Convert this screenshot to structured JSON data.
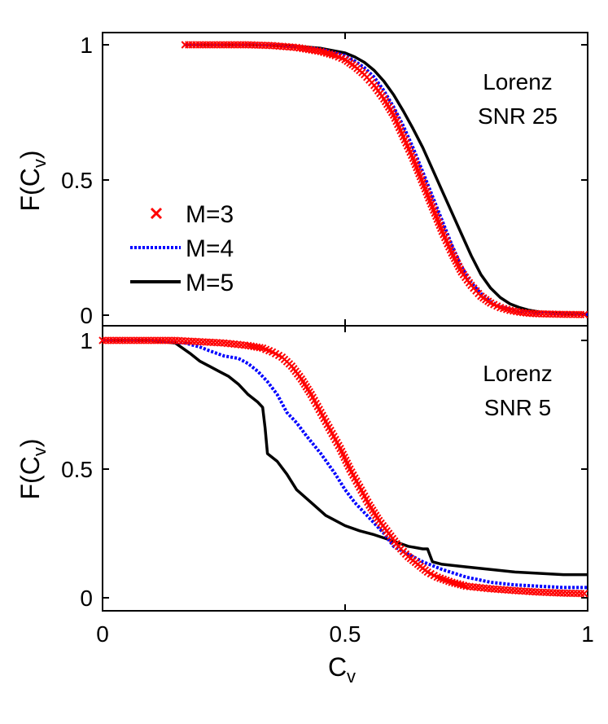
{
  "chart_data": [
    {
      "type": "line",
      "panel": "top",
      "annotation": [
        "Lorenz",
        "SNR 25"
      ],
      "ylabel": "F(C",
      "ylabel_sub": "v",
      "ylabel_close": ")",
      "xlim": [
        0,
        1
      ],
      "ylim": [
        0,
        1
      ],
      "yticks": [
        0,
        0.5,
        1
      ],
      "ytick_labels": [
        "0",
        "0.5",
        "1"
      ],
      "legend": {
        "placement": "middle-left",
        "entries": [
          {
            "label": "M=3",
            "series": 0
          },
          {
            "label": "M=4",
            "series": 1
          },
          {
            "label": "M=5",
            "series": 2
          }
        ]
      },
      "series": [
        {
          "name": "M=3",
          "color": "#ff0000",
          "style": "x-markers",
          "x": [
            0.17,
            0.2,
            0.25,
            0.3,
            0.35,
            0.4,
            0.45,
            0.48,
            0.5,
            0.52,
            0.54,
            0.56,
            0.58,
            0.6,
            0.62,
            0.64,
            0.66,
            0.68,
            0.7,
            0.72,
            0.74,
            0.76,
            0.78,
            0.8,
            0.82,
            0.84,
            0.86,
            0.88,
            0.9,
            0.95,
            1.0
          ],
          "y": [
            1.0,
            1.0,
            1.0,
            1.0,
            0.997,
            0.99,
            0.975,
            0.96,
            0.945,
            0.92,
            0.89,
            0.85,
            0.8,
            0.74,
            0.66,
            0.58,
            0.49,
            0.4,
            0.31,
            0.23,
            0.16,
            0.11,
            0.07,
            0.045,
            0.028,
            0.018,
            0.011,
            0.007,
            0.005,
            0.003,
            0.002
          ]
        },
        {
          "name": "M=4",
          "color": "#0000ff",
          "style": "dotted",
          "x": [
            0.17,
            0.25,
            0.3,
            0.35,
            0.4,
            0.45,
            0.5,
            0.52,
            0.54,
            0.56,
            0.58,
            0.6,
            0.62,
            0.64,
            0.66,
            0.68,
            0.7,
            0.72,
            0.74,
            0.76,
            0.78,
            0.8,
            0.82,
            0.84,
            0.86,
            0.88,
            0.9,
            0.95,
            1.0
          ],
          "y": [
            1.0,
            1.0,
            1.0,
            0.998,
            0.993,
            0.983,
            0.96,
            0.94,
            0.915,
            0.88,
            0.83,
            0.77,
            0.7,
            0.62,
            0.53,
            0.44,
            0.35,
            0.26,
            0.18,
            0.12,
            0.08,
            0.05,
            0.032,
            0.022,
            0.015,
            0.01,
            0.007,
            0.004,
            0.003
          ]
        },
        {
          "name": "M=5",
          "color": "#000000",
          "style": "solid",
          "x": [
            0.17,
            0.25,
            0.3,
            0.35,
            0.4,
            0.45,
            0.5,
            0.52,
            0.54,
            0.56,
            0.58,
            0.6,
            0.62,
            0.64,
            0.66,
            0.68,
            0.7,
            0.72,
            0.74,
            0.76,
            0.78,
            0.8,
            0.82,
            0.84,
            0.86,
            0.88,
            0.9,
            0.95,
            1.0
          ],
          "y": [
            1.0,
            1.0,
            1.0,
            0.998,
            0.995,
            0.987,
            0.97,
            0.955,
            0.935,
            0.905,
            0.865,
            0.815,
            0.755,
            0.69,
            0.62,
            0.54,
            0.46,
            0.38,
            0.3,
            0.22,
            0.15,
            0.1,
            0.065,
            0.042,
            0.028,
            0.018,
            0.012,
            0.006,
            0.004
          ]
        }
      ]
    },
    {
      "type": "line",
      "panel": "bottom",
      "annotation": [
        "Lorenz",
        "SNR 5"
      ],
      "xlabel": "C",
      "xlabel_sub": "v",
      "ylabel": "F(C",
      "ylabel_sub": "v",
      "ylabel_close": ")",
      "xlim": [
        0,
        1
      ],
      "ylim": [
        0,
        1
      ],
      "xticks": [
        0,
        0.5,
        1
      ],
      "xtick_labels": [
        "0",
        "0.5",
        "1"
      ],
      "yticks": [
        0,
        0.5,
        1
      ],
      "ytick_labels": [
        "0",
        "0.5",
        "1"
      ],
      "series": [
        {
          "name": "M=3",
          "color": "#ff0000",
          "style": "x-markers",
          "x": [
            0.0,
            0.05,
            0.1,
            0.15,
            0.2,
            0.25,
            0.3,
            0.33,
            0.35,
            0.37,
            0.39,
            0.41,
            0.43,
            0.45,
            0.47,
            0.49,
            0.51,
            0.53,
            0.55,
            0.57,
            0.59,
            0.61,
            0.63,
            0.65,
            0.67,
            0.69,
            0.72,
            0.75,
            0.8,
            0.85,
            0.9,
            0.95,
            1.0
          ],
          "y": [
            1.0,
            1.0,
            1.0,
            1.0,
            0.995,
            0.99,
            0.98,
            0.97,
            0.955,
            0.935,
            0.9,
            0.85,
            0.79,
            0.72,
            0.65,
            0.58,
            0.5,
            0.43,
            0.36,
            0.3,
            0.25,
            0.2,
            0.16,
            0.13,
            0.1,
            0.08,
            0.06,
            0.045,
            0.035,
            0.028,
            0.022,
            0.018,
            0.016
          ]
        },
        {
          "name": "M=4",
          "color": "#0000ff",
          "style": "dotted",
          "x": [
            0.0,
            0.1,
            0.17,
            0.2,
            0.22,
            0.25,
            0.28,
            0.3,
            0.32,
            0.34,
            0.36,
            0.38,
            0.4,
            0.42,
            0.45,
            0.48,
            0.5,
            0.52,
            0.55,
            0.58,
            0.6,
            0.63,
            0.66,
            0.7,
            0.75,
            0.8,
            0.85,
            0.9,
            0.95,
            1.0
          ],
          "y": [
            1.0,
            1.0,
            0.99,
            0.975,
            0.96,
            0.94,
            0.93,
            0.91,
            0.88,
            0.84,
            0.79,
            0.72,
            0.68,
            0.63,
            0.56,
            0.48,
            0.42,
            0.37,
            0.31,
            0.25,
            0.2,
            0.17,
            0.14,
            0.11,
            0.08,
            0.06,
            0.05,
            0.045,
            0.04,
            0.04
          ]
        },
        {
          "name": "M=5",
          "color": "#000000",
          "style": "solid",
          "x": [
            0.0,
            0.1,
            0.15,
            0.18,
            0.2,
            0.22,
            0.24,
            0.26,
            0.28,
            0.3,
            0.32,
            0.33,
            0.335,
            0.34,
            0.36,
            0.38,
            0.4,
            0.43,
            0.46,
            0.5,
            0.53,
            0.56,
            0.6,
            0.63,
            0.66,
            0.67,
            0.68,
            0.7,
            0.75,
            0.8,
            0.85,
            0.9,
            0.95,
            1.0
          ],
          "y": [
            1.0,
            1.0,
            0.99,
            0.95,
            0.92,
            0.9,
            0.88,
            0.86,
            0.83,
            0.79,
            0.76,
            0.74,
            0.66,
            0.56,
            0.53,
            0.48,
            0.42,
            0.37,
            0.32,
            0.28,
            0.26,
            0.245,
            0.22,
            0.2,
            0.19,
            0.19,
            0.14,
            0.13,
            0.12,
            0.11,
            0.1,
            0.095,
            0.09,
            0.09
          ]
        }
      ]
    }
  ]
}
